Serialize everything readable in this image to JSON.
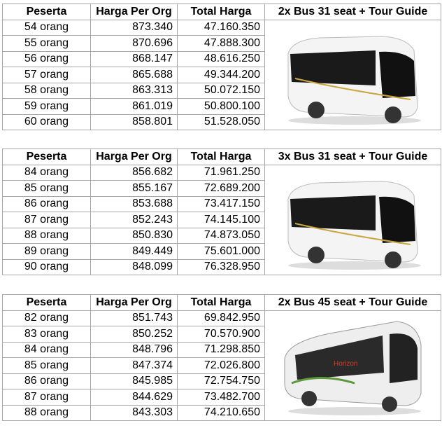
{
  "headers": {
    "peserta": "Peserta",
    "harga": "Harga Per Org",
    "total": "Total Harga"
  },
  "tables": [
    {
      "title": "2x Bus 31 seat + Tour Guide",
      "image": "minibus-image",
      "rows": [
        [
          "54 orang",
          "873.340",
          "47.160.350"
        ],
        [
          "55 orang",
          "870.696",
          "47.888.300"
        ],
        [
          "56 orang",
          "868.147",
          "48.616.250"
        ],
        [
          "57 orang",
          "865.688",
          "49.344.200"
        ],
        [
          "58 orang",
          "863.313",
          "50.072.150"
        ],
        [
          "59 orang",
          "861.019",
          "50.800.100"
        ],
        [
          "60 orang",
          "858.801",
          "51.528.050"
        ]
      ]
    },
    {
      "title": "3x Bus 31 seat + Tour Guide",
      "image": "minibus-image",
      "rows": [
        [
          "84 orang",
          "856.682",
          "71.961.250"
        ],
        [
          "85 orang",
          "855.167",
          "72.689.200"
        ],
        [
          "86 orang",
          "853.688",
          "73.417.150"
        ],
        [
          "87 orang",
          "852.243",
          "74.145.100"
        ],
        [
          "88 orang",
          "850.830",
          "74.873.050"
        ],
        [
          "89 orang",
          "849.449",
          "75.601.000"
        ],
        [
          "90 orang",
          "848.099",
          "76.328.950"
        ]
      ]
    },
    {
      "title": "2x Bus 45 seat + Tour Guide",
      "image": "big-bus-image",
      "rows": [
        [
          "82 orang",
          "851.743",
          "69.842.950"
        ],
        [
          "83 orang",
          "850.252",
          "70.570.900"
        ],
        [
          "84 orang",
          "848.796",
          "71.298.850"
        ],
        [
          "85 orang",
          "847.374",
          "72.026.800"
        ],
        [
          "86 orang",
          "845.985",
          "72.754.750"
        ],
        [
          "87 orang",
          "844.629",
          "73.482.700"
        ],
        [
          "88 orang",
          "843.303",
          "74.210.650"
        ]
      ]
    }
  ]
}
